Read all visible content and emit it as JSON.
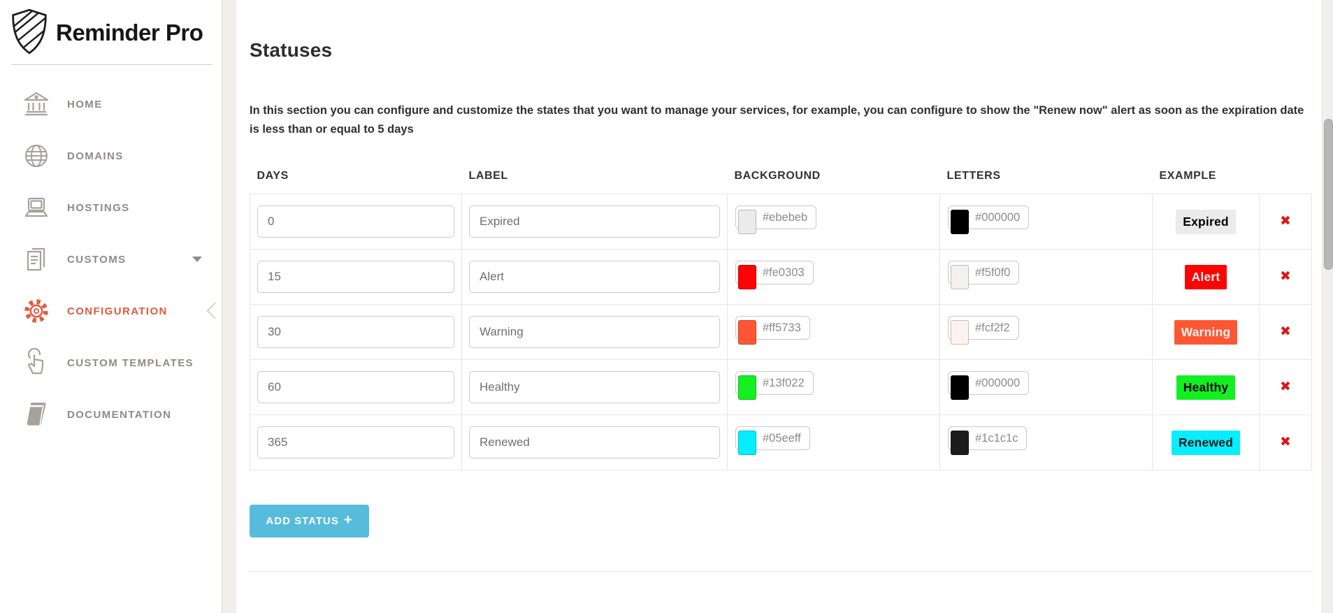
{
  "brand": {
    "name": "Reminder Pro"
  },
  "sidebar": {
    "items": [
      {
        "label": "HOME",
        "icon": "bank-icon",
        "active": false,
        "has_caret": false
      },
      {
        "label": "DOMAINS",
        "icon": "globe-icon",
        "active": false,
        "has_caret": false
      },
      {
        "label": "HOSTINGS",
        "icon": "laptop-icon",
        "active": false,
        "has_caret": false
      },
      {
        "label": "CUSTOMS",
        "icon": "documents-icon",
        "active": false,
        "has_caret": true
      },
      {
        "label": "CONFIGURATION",
        "icon": "gear-icon",
        "active": true,
        "has_caret": false
      },
      {
        "label": "CUSTOM TEMPLATES",
        "icon": "tap-icon",
        "active": false,
        "has_caret": false
      },
      {
        "label": "DOCUMENTATION",
        "icon": "book-icon",
        "active": false,
        "has_caret": false
      }
    ]
  },
  "page": {
    "title": "Statuses",
    "description": "In this section you can configure and customize the states that you want to manage your services, for example, you can configure to show the \"Renew now\" alert as soon as the expiration date is less than or equal to 5 days"
  },
  "table": {
    "columns": [
      "DAYS",
      "LABEL",
      "BACKGROUND",
      "LETTERS",
      "EXAMPLE"
    ],
    "rows": [
      {
        "days": "0",
        "label": "Expired",
        "background": "#ebebeb",
        "letters": "#000000"
      },
      {
        "days": "15",
        "label": "Alert",
        "background": "#fe0303",
        "letters": "#f5f0f0"
      },
      {
        "days": "30",
        "label": "Warning",
        "background": "#ff5733",
        "letters": "#fcf2f2"
      },
      {
        "days": "60",
        "label": "Healthy",
        "background": "#13f022",
        "letters": "#000000"
      },
      {
        "days": "365",
        "label": "Renewed",
        "background": "#05eeff",
        "letters": "#1c1c1c"
      }
    ]
  },
  "buttons": {
    "add_status": "ADD STATUS",
    "add_status_plus": "+",
    "delete_glyph": "✖"
  },
  "colors": {
    "accent_active": "#e2593f",
    "add_button": "#57bbdb",
    "delete": "#e01414",
    "sidebar_text": "#8f8a85"
  }
}
